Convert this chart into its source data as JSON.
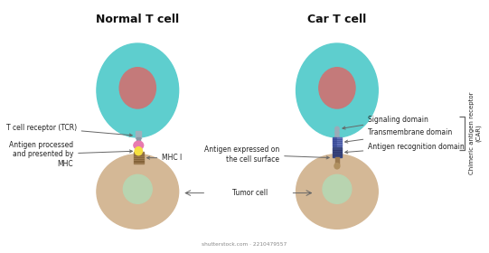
{
  "background_color": "#ffffff",
  "title_left": "Normal T cell",
  "title_right": "Car T cell",
  "watermark": "shutterstock.com · 2210479557",
  "t_cell_color": "#5ecece",
  "t_cell_nucleus_color": "#c47a7a",
  "tumor_cell_color": "#d4b896",
  "tumor_nucleus_color": "#b8d4b0",
  "receptor_colors": {
    "top_gray": "#9aabb8",
    "pink": "#e87ab0",
    "yellow": "#f5e040",
    "brown_stem": "#9b7a50"
  },
  "car_receptor_colors": {
    "bead_gray": "#9aabb8",
    "blue_dark": "#4455a0",
    "blue_mid": "#6070b8",
    "dark_bottom": "#3a4880",
    "stem_brown": "#9b7a50"
  },
  "labels_left": {
    "tcr": "T cell receptor (TCR)",
    "antigen": "Antigen processed\nand presented by\nMHC",
    "mhc": "MHC I"
  },
  "labels_right": {
    "signaling": "Signaling domain",
    "transmembrane": "Transmembrane domain",
    "antigen_recog": "Antigen recognition domain",
    "antigen_surface": "Antigen expressed on\nthe cell surface",
    "car_label": "Chimeric antigen receptor\n(CAR)"
  },
  "tumor_label": "Tumor cell",
  "arrow_color": "#666666",
  "label_fontsize": 5.5,
  "title_fontsize": 9,
  "line_color": "#666666"
}
